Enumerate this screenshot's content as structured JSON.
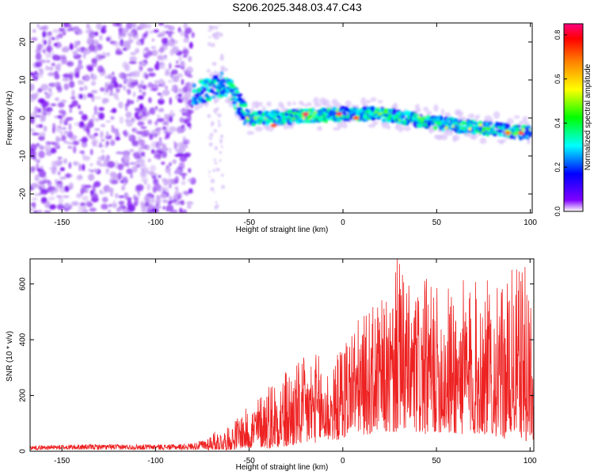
{
  "figure": {
    "title": "S206.2025.348.03.47.C43"
  },
  "chart_data": [
    {
      "type": "heatmap",
      "title": "S206.2025.348.03.47.C43",
      "xlabel": "Height of straight line (km)",
      "ylabel": "Frequency (Hz)",
      "xlim": [
        -167,
        101
      ],
      "ylim": [
        -25,
        25
      ],
      "xticks": [
        -150,
        -100,
        -50,
        0,
        50,
        100
      ],
      "yticks": [
        -20,
        -10,
        0,
        10,
        20
      ],
      "noise_region_km": [
        -167,
        -80
      ],
      "signal_ridge": [
        {
          "x": -80,
          "y": 6
        },
        {
          "x": -70,
          "y": 8
        },
        {
          "x": -63,
          "y": 9
        },
        {
          "x": -58,
          "y": 6
        },
        {
          "x": -54,
          "y": 2
        },
        {
          "x": -50,
          "y": 0
        },
        {
          "x": -40,
          "y": 0
        },
        {
          "x": -20,
          "y": 0.5
        },
        {
          "x": 0,
          "y": 1
        },
        {
          "x": 20,
          "y": 1
        },
        {
          "x": 40,
          "y": -0.5
        },
        {
          "x": 60,
          "y": -2
        },
        {
          "x": 80,
          "y": -3
        },
        {
          "x": 100,
          "y": -4
        }
      ],
      "peak_locations": [
        {
          "x": -37,
          "y": -2,
          "amplitude": 0.8
        },
        {
          "x": -20,
          "y": 1,
          "amplitude": 0.85
        },
        {
          "x": -2,
          "y": 1,
          "amplitude": 0.85
        },
        {
          "x": 7,
          "y": 0,
          "amplitude": 0.8
        },
        {
          "x": 88,
          "y": -4,
          "amplitude": 0.75
        },
        {
          "x": 95,
          "y": -4,
          "amplitude": 0.8
        }
      ],
      "colorbar": {
        "label": "Normalized spectral amplitude",
        "range": [
          0,
          0.85
        ],
        "ticks": [
          "0.0",
          "0.2",
          "0.4",
          "0.6",
          "0.8"
        ],
        "tick_values": [
          0,
          0.2,
          0.4,
          0.6,
          0.8
        ],
        "colors": [
          "#ffffff",
          "#8000ff",
          "#0000ff",
          "#00ffff",
          "#00ff00",
          "#ffff00",
          "#ff8000",
          "#ff0000",
          "#ff0080"
        ]
      }
    },
    {
      "type": "line",
      "xlabel": "Height of straight line (km)",
      "ylabel": "SNR (10 * v/v)",
      "xlim": [
        -167,
        102
      ],
      "ylim": [
        0,
        690
      ],
      "xticks": [
        -150,
        -100,
        -50,
        0,
        50,
        100
      ],
      "yticks": [
        0,
        200,
        400,
        600
      ],
      "series": [
        {
          "name": "SNR",
          "color": "#ee2222",
          "envelope": {
            "x": [
              -167,
              -140,
              -110,
              -90,
              -80,
              -75,
              -70,
              -65,
              -60,
              -55,
              -50,
              -45,
              -40,
              -35,
              -30,
              -25,
              -20,
              -15,
              -10,
              -5,
              0,
              5,
              10,
              15,
              20,
              25,
              30,
              35,
              40,
              45,
              50,
              55,
              60,
              65,
              70,
              75,
              80,
              85,
              90,
              95,
              100,
              102
            ],
            "min": [
              5,
              5,
              5,
              5,
              5,
              5,
              5,
              5,
              5,
              10,
              10,
              15,
              10,
              15,
              10,
              20,
              20,
              30,
              30,
              40,
              40,
              80,
              60,
              60,
              80,
              60,
              70,
              80,
              60,
              60,
              70,
              60,
              60,
              60,
              60,
              60,
              60,
              40,
              60,
              50,
              20,
              40
            ],
            "max": [
              20,
              25,
              25,
              25,
              30,
              40,
              70,
              75,
              90,
              140,
              160,
              200,
              260,
              280,
              300,
              320,
              340,
              360,
              330,
              300,
              420,
              470,
              480,
              520,
              540,
              560,
              690,
              600,
              590,
              620,
              590,
              610,
              600,
              620,
              610,
              640,
              600,
              580,
              650,
              680,
              660,
              300
            ]
          },
          "peak": {
            "x": 29,
            "y": 690
          }
        }
      ]
    }
  ]
}
